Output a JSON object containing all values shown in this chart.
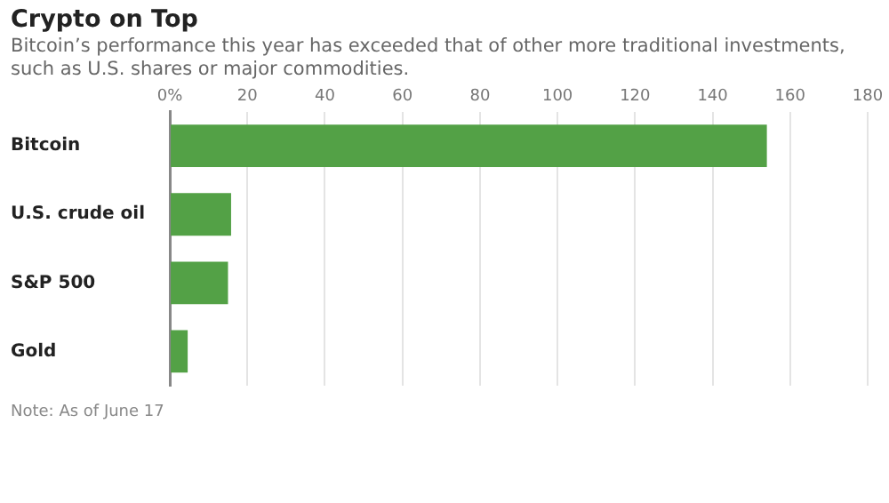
{
  "chart_data": {
    "type": "bar",
    "orientation": "horizontal",
    "title": "Crypto on Top",
    "subtitle": "Bitcoin’s performance this year has exceeded that of other more traditional investments, such as U.S. shares or major commodities.",
    "categories": [
      "Bitcoin",
      "U.S. crude oil",
      "S&P 500",
      "Gold"
    ],
    "values": [
      154,
      15.8,
      15,
      4.6
    ],
    "color": "#53a146",
    "xlim": [
      0,
      180
    ],
    "xticks": [
      {
        "value": 0,
        "label": "0%"
      },
      20,
      40,
      60,
      80,
      100,
      120,
      140,
      160,
      180
    ],
    "grid": "x",
    "legend": false,
    "annotations": [
      "Note: As of June 17"
    ]
  }
}
